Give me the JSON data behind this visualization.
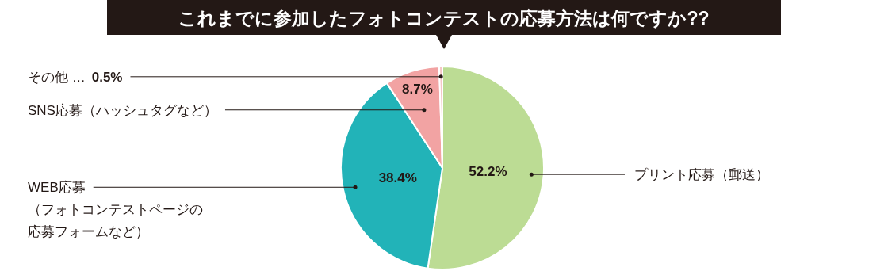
{
  "chart_data": {
    "type": "pie",
    "title": "これまでに参加したフォトコンテストの応募方法は何ですか??",
    "categories": [
      "プリント応募（郵送）",
      "WEB応募（フォトコンテストページの応募フォームなど）",
      "SNS応募（ハッシュタグなど）",
      "その他 …"
    ],
    "values": [
      52.2,
      38.4,
      8.7,
      0.5
    ],
    "colors": [
      "#bcdc94",
      "#22b3b8",
      "#f2a3a3",
      "#f5c6c6"
    ],
    "value_labels": [
      "52.2%",
      "38.4%",
      "8.7%",
      "0.5%"
    ]
  }
}
